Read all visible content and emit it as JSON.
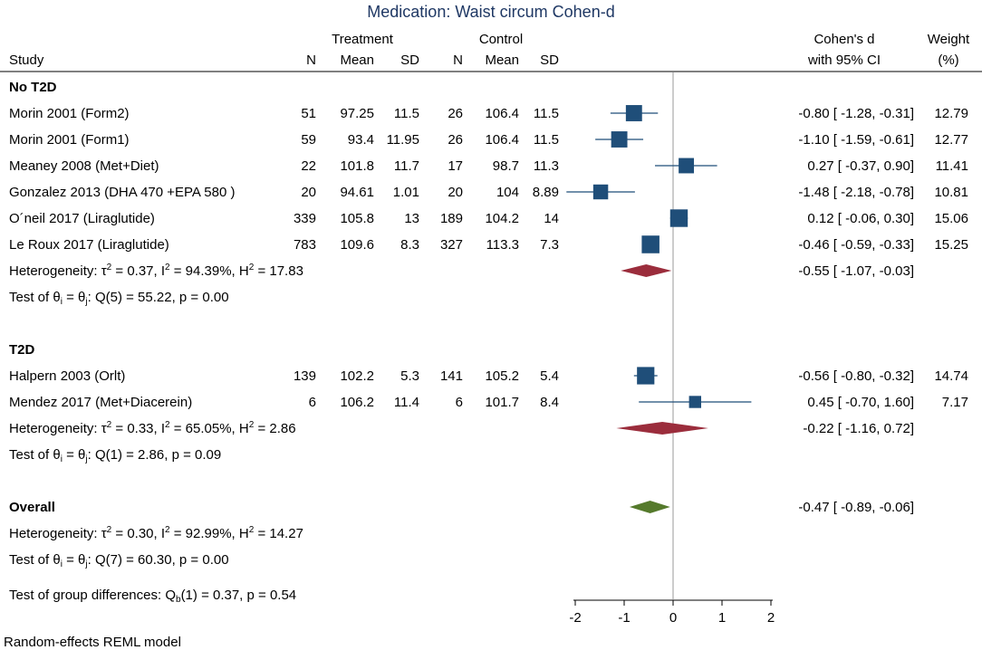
{
  "chart_data": {
    "type": "forest",
    "title": "Medication: Waist circum Cohen-d",
    "header": {
      "study": "Study",
      "treatment": "Treatment",
      "control": "Control",
      "n": "N",
      "mean": "Mean",
      "sd": "SD",
      "effect_line1": "Cohen's d",
      "effect_line2": "with 95% CI",
      "weight_line1": "Weight",
      "weight_line2": "(%)"
    },
    "x_axis": {
      "ticks": [
        -2,
        -1,
        0,
        1,
        2
      ],
      "xlim": [
        -2,
        2
      ],
      "reference_line": 0
    },
    "groups": [
      {
        "label": "No T2D",
        "studies": [
          {
            "name": "Morin 2001 (Form2)",
            "t_n": "51",
            "t_mean": "97.25",
            "t_sd": "11.5",
            "c_n": "26",
            "c_mean": "106.4",
            "c_sd": "11.5",
            "d": -0.8,
            "lo": -1.28,
            "hi": -0.31,
            "ci_text": "-0.80 [ -1.28, -0.31]",
            "weight": "12.79"
          },
          {
            "name": "Morin 2001 (Form1)",
            "t_n": "59",
            "t_mean": "93.4",
            "t_sd": "11.95",
            "c_n": "26",
            "c_mean": "106.4",
            "c_sd": "11.5",
            "d": -1.1,
            "lo": -1.59,
            "hi": -0.61,
            "ci_text": "-1.10 [ -1.59, -0.61]",
            "weight": "12.77"
          },
          {
            "name": "Meaney 2008 (Met+Diet)",
            "t_n": "22",
            "t_mean": "101.8",
            "t_sd": "11.7",
            "c_n": "17",
            "c_mean": "98.7",
            "c_sd": "11.3",
            "d": 0.27,
            "lo": -0.37,
            "hi": 0.9,
            "ci_text": "0.27 [ -0.37,  0.90]",
            "weight": "11.41"
          },
          {
            "name": "Gonzalez 2013 (DHA 470 +EPA 580 )",
            "t_n": "20",
            "t_mean": "94.61",
            "t_sd": "1.01",
            "c_n": "20",
            "c_mean": "104",
            "c_sd": "8.89",
            "d": -1.48,
            "lo": -2.18,
            "hi": -0.78,
            "ci_text": "-1.48 [ -2.18, -0.78]",
            "weight": "10.81"
          },
          {
            "name": "O´neil 2017 (Liraglutide)",
            "t_n": "339",
            "t_mean": "105.8",
            "t_sd": "13",
            "c_n": "189",
            "c_mean": "104.2",
            "c_sd": "14",
            "d": 0.12,
            "lo": -0.06,
            "hi": 0.3,
            "ci_text": "0.12 [ -0.06,  0.30]",
            "weight": "15.06"
          },
          {
            "name": "Le Roux 2017 (Liraglutide)",
            "t_n": "783",
            "t_mean": "109.6",
            "t_sd": "8.3",
            "c_n": "327",
            "c_mean": "113.3",
            "c_sd": "7.3",
            "d": -0.46,
            "lo": -0.59,
            "hi": -0.33,
            "ci_text": "-0.46 [ -0.59, -0.33]",
            "weight": "15.25"
          }
        ],
        "heterogeneity": {
          "prefix": "Heterogeneity: τ",
          "sup1": "2",
          "mid1": " = 0.37, I",
          "sup2": "2",
          "mid2": " = 94.39%, H",
          "sup3": "2",
          "end": " = 17.83"
        },
        "pooled": {
          "d": -0.55,
          "lo": -1.07,
          "hi": -0.03,
          "ci_text": "-0.55 [ -1.07, -0.03]"
        },
        "test": {
          "prefix": "Test of θ",
          "sub1": "i",
          "mid": " = θ",
          "sub2": "j",
          "end": ": Q(5) = 55.22, p = 0.00"
        }
      },
      {
        "label": "T2D",
        "studies": [
          {
            "name": "Halpern 2003 (Orlt)",
            "t_n": "139",
            "t_mean": "102.2",
            "t_sd": "5.3",
            "c_n": "141",
            "c_mean": "105.2",
            "c_sd": "5.4",
            "d": -0.56,
            "lo": -0.8,
            "hi": -0.32,
            "ci_text": "-0.56 [ -0.80, -0.32]",
            "weight": "14.74"
          },
          {
            "name": "Mendez 2017 (Met+Diacerein)",
            "t_n": "6",
            "t_mean": "106.2",
            "t_sd": "11.4",
            "c_n": "6",
            "c_mean": "101.7",
            "c_sd": "8.4",
            "d": 0.45,
            "lo": -0.7,
            "hi": 1.6,
            "ci_text": "0.45 [ -0.70,  1.60]",
            "weight": "7.17"
          }
        ],
        "heterogeneity": {
          "prefix": "Heterogeneity: τ",
          "sup1": "2",
          "mid1": " = 0.33, I",
          "sup2": "2",
          "mid2": " = 65.05%, H",
          "sup3": "2",
          "end": " = 2.86"
        },
        "pooled": {
          "d": -0.22,
          "lo": -1.16,
          "hi": 0.72,
          "ci_text": "-0.22 [ -1.16,  0.72]"
        },
        "test": {
          "prefix": "Test of θ",
          "sub1": "i",
          "mid": " = θ",
          "sub2": "j",
          "end": ": Q(1) = 2.86, p = 0.09"
        }
      }
    ],
    "overall": {
      "label": "Overall",
      "d": -0.47,
      "lo": -0.89,
      "hi": -0.06,
      "ci_text": "-0.47 [ -0.89, -0.06]",
      "heterogeneity": {
        "prefix": "Heterogeneity: τ",
        "sup1": "2",
        "mid1": " = 0.30, I",
        "sup2": "2",
        "mid2": " = 92.99%, H",
        "sup3": "2",
        "end": " = 14.27"
      },
      "test": {
        "prefix": "Test of θ",
        "sub1": "i",
        "mid": " = θ",
        "sub2": "j",
        "end": ": Q(7) = 60.30, p = 0.00"
      }
    },
    "group_difference": "Test of group differences: Q",
    "group_difference_sub": "b",
    "group_difference_end": "(1) = 0.37, p = 0.54",
    "footnote": "Random-effects REML model",
    "colors": {
      "study_marker": "#1f4e79",
      "ci_line": "#1f4e79",
      "subgroup_diamond": "#9b2d3c",
      "overall_diamond": "#557a2c",
      "reference_line": "#999999",
      "axis": "#000000"
    }
  }
}
